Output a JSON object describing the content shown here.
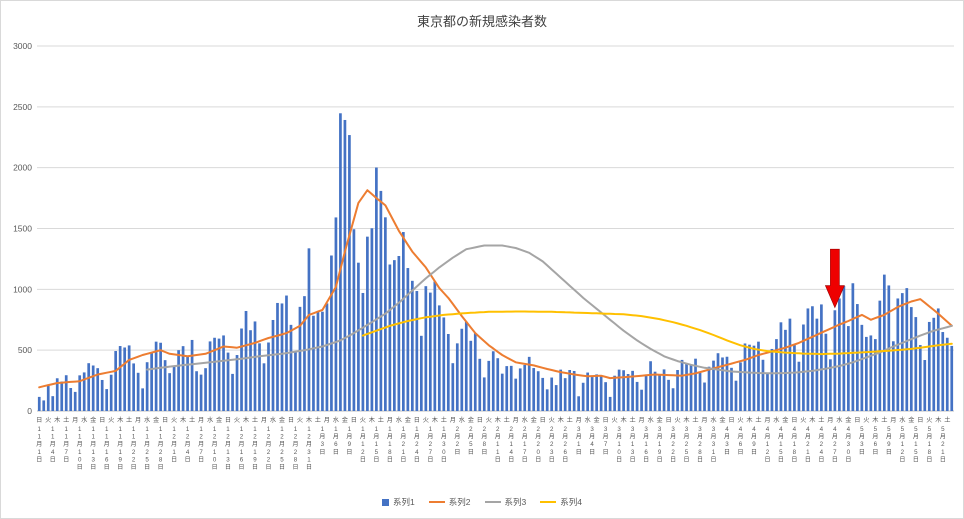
{
  "title": "東京都の新規感染者数",
  "legend": [
    "系列1",
    "系列2",
    "系列3",
    "系列4"
  ],
  "chart_data": {
    "type": "bar",
    "title": "東京都の新規感染者数",
    "x_start_date": "2020-11-01",
    "days": 204,
    "weekday_labels": [
      "日",
      "月",
      "火",
      "水",
      "木",
      "金",
      "土"
    ],
    "month_char": "月",
    "day_char": "日",
    "ylim": [
      0,
      3000
    ],
    "y_ticks": [
      0,
      500,
      1000,
      1500,
      2000,
      2500,
      3000
    ],
    "grid": true,
    "legend_position": "bottom",
    "series": [
      {
        "name": "系列1",
        "type": "bar",
        "color": "#4472C4",
        "values": [
          116,
          87,
          209,
          122,
          269,
          242,
          294,
          189,
          157,
          293,
          317,
          393,
          374,
          352,
          255,
          180,
          298,
          493,
          534,
          522,
          539,
          391,
          314,
          186,
          401,
          481,
          570,
          561,
          418,
          311,
          372,
          500,
          533,
          449,
          584,
          327,
          299,
          352,
          572,
          602,
          595,
          621,
          480,
          305,
          460,
          678,
          822,
          664,
          736,
          556,
          392,
          563,
          748,
          888,
          884,
          949,
          708,
          481,
          856,
          944,
          1337,
          783,
          814,
          816,
          884,
          1278,
          1591,
          2447,
          2392,
          2268,
          1494,
          1219,
          970,
          1433,
          1502,
          2001,
          1809,
          1592,
          1204,
          1240,
          1274,
          1471,
          1175,
          1070,
          986,
          618,
          1026,
          973,
          1064,
          868,
          769,
          633,
          393,
          556,
          676,
          734,
          577,
          639,
          429,
          276,
          412,
          491,
          434,
          307,
          369,
          371,
          266,
          350,
          378,
          445,
          353,
          327,
          272,
          178,
          275,
          213,
          340,
          270,
          337,
          329,
          121,
          232,
          316,
          279,
          301,
          293,
          237,
          116,
          290,
          340,
          335,
          304,
          330,
          239,
          175,
          300,
          409,
          323,
          303,
          342,
          256,
          187,
          337,
          420,
          394,
          376,
          430,
          313,
          234,
          364,
          414,
          475,
          440,
          446,
          355,
          249,
          399,
          555,
          545,
          537,
          570,
          421,
          306,
          510,
          591,
          729,
          667,
          759,
          543,
          405,
          711,
          843,
          861,
          759,
          876,
          635,
          425,
          828,
          925,
          1027,
          698,
          1050,
          879,
          708,
          609,
          621,
          591,
          907,
          1121,
          1032,
          573,
          925,
          969,
          1010,
          854,
          772,
          542,
          419,
          732,
          766,
          843,
          649,
          602,
          535
        ]
      },
      {
        "name": "系列2",
        "type": "line",
        "color": "#ED7D31",
        "points": [
          [
            0,
            195
          ],
          [
            4,
            230
          ],
          [
            9,
            245
          ],
          [
            13,
            300
          ],
          [
            17,
            330
          ],
          [
            20,
            420
          ],
          [
            23,
            460
          ],
          [
            27,
            500
          ],
          [
            29,
            470
          ],
          [
            33,
            450
          ],
          [
            37,
            470
          ],
          [
            41,
            530
          ],
          [
            44,
            520
          ],
          [
            48,
            560
          ],
          [
            51,
            600
          ],
          [
            55,
            640
          ],
          [
            58,
            700
          ],
          [
            60,
            790
          ],
          [
            63,
            830
          ],
          [
            66,
            1020
          ],
          [
            68,
            1310
          ],
          [
            71,
            1710
          ],
          [
            73,
            1815
          ],
          [
            75,
            1750
          ],
          [
            77,
            1690
          ],
          [
            80,
            1480
          ],
          [
            83,
            1310
          ],
          [
            86,
            1180
          ],
          [
            89,
            1010
          ],
          [
            91,
            930
          ],
          [
            94,
            780
          ],
          [
            97,
            640
          ],
          [
            100,
            540
          ],
          [
            103,
            460
          ],
          [
            106,
            400
          ],
          [
            110,
            375
          ],
          [
            113,
            345
          ],
          [
            116,
            320
          ],
          [
            119,
            300
          ],
          [
            122,
            285
          ],
          [
            125,
            290
          ],
          [
            127,
            270
          ],
          [
            131,
            280
          ],
          [
            134,
            290
          ],
          [
            137,
            300
          ],
          [
            140,
            295
          ],
          [
            143,
            290
          ],
          [
            146,
            310
          ],
          [
            149,
            340
          ],
          [
            151,
            360
          ],
          [
            154,
            390
          ],
          [
            157,
            420
          ],
          [
            160,
            460
          ],
          [
            163,
            490
          ],
          [
            166,
            520
          ],
          [
            169,
            560
          ],
          [
            172,
            610
          ],
          [
            175,
            660
          ],
          [
            178,
            710
          ],
          [
            180,
            740
          ],
          [
            183,
            790
          ],
          [
            185,
            750
          ],
          [
            188,
            790
          ],
          [
            191,
            855
          ],
          [
            194,
            900
          ],
          [
            196,
            920
          ],
          [
            198,
            860
          ],
          [
            200,
            800
          ],
          [
            203,
            700
          ]
        ]
      },
      {
        "name": "系列3",
        "type": "line",
        "color": "#A5A5A5",
        "points": [
          [
            24,
            340
          ],
          [
            29,
            365
          ],
          [
            34,
            385
          ],
          [
            39,
            405
          ],
          [
            44,
            425
          ],
          [
            49,
            450
          ],
          [
            54,
            470
          ],
          [
            59,
            500
          ],
          [
            63,
            530
          ],
          [
            67,
            580
          ],
          [
            70,
            640
          ],
          [
            74,
            730
          ],
          [
            77,
            800
          ],
          [
            80,
            890
          ],
          [
            83,
            990
          ],
          [
            86,
            1090
          ],
          [
            89,
            1180
          ],
          [
            92,
            1260
          ],
          [
            95,
            1330
          ],
          [
            99,
            1360
          ],
          [
            103,
            1360
          ],
          [
            106,
            1340
          ],
          [
            109,
            1300
          ],
          [
            112,
            1230
          ],
          [
            115,
            1130
          ],
          [
            118,
            1030
          ],
          [
            121,
            930
          ],
          [
            124,
            840
          ],
          [
            127,
            750
          ],
          [
            130,
            660
          ],
          [
            133,
            580
          ],
          [
            136,
            510
          ],
          [
            139,
            450
          ],
          [
            142,
            410
          ],
          [
            145,
            380
          ],
          [
            148,
            355
          ],
          [
            151,
            340
          ],
          [
            154,
            325
          ],
          [
            157,
            318
          ],
          [
            160,
            312
          ],
          [
            163,
            310
          ],
          [
            166,
            312
          ],
          [
            169,
            318
          ],
          [
            172,
            330
          ],
          [
            175,
            348
          ],
          [
            178,
            370
          ],
          [
            181,
            400
          ],
          [
            184,
            440
          ],
          [
            187,
            480
          ],
          [
            190,
            530
          ],
          [
            193,
            575
          ],
          [
            196,
            620
          ],
          [
            199,
            660
          ],
          [
            203,
            700
          ]
        ]
      },
      {
        "name": "系列4",
        "type": "line",
        "color": "#FFC000",
        "points": [
          [
            72,
            620
          ],
          [
            75,
            660
          ],
          [
            78,
            700
          ],
          [
            82,
            740
          ],
          [
            86,
            770
          ],
          [
            90,
            790
          ],
          [
            95,
            805
          ],
          [
            100,
            815
          ],
          [
            107,
            818
          ],
          [
            114,
            815
          ],
          [
            120,
            808
          ],
          [
            126,
            800
          ],
          [
            130,
            795
          ],
          [
            134,
            780
          ],
          [
            138,
            755
          ],
          [
            141,
            730
          ],
          [
            144,
            700
          ],
          [
            147,
            665
          ],
          [
            150,
            625
          ],
          [
            153,
            580
          ],
          [
            156,
            540
          ],
          [
            159,
            510
          ],
          [
            162,
            492
          ],
          [
            166,
            480
          ],
          [
            170,
            472
          ],
          [
            174,
            468
          ],
          [
            178,
            472
          ],
          [
            182,
            480
          ],
          [
            186,
            488
          ],
          [
            190,
            498
          ],
          [
            194,
            510
          ],
          [
            197,
            525
          ],
          [
            200,
            540
          ],
          [
            203,
            552
          ]
        ]
      }
    ],
    "annotation": {
      "shape": "block-arrow-down",
      "color": "#EE0000",
      "day_index": 177,
      "top_value": 1330,
      "tip_value": 850
    }
  }
}
